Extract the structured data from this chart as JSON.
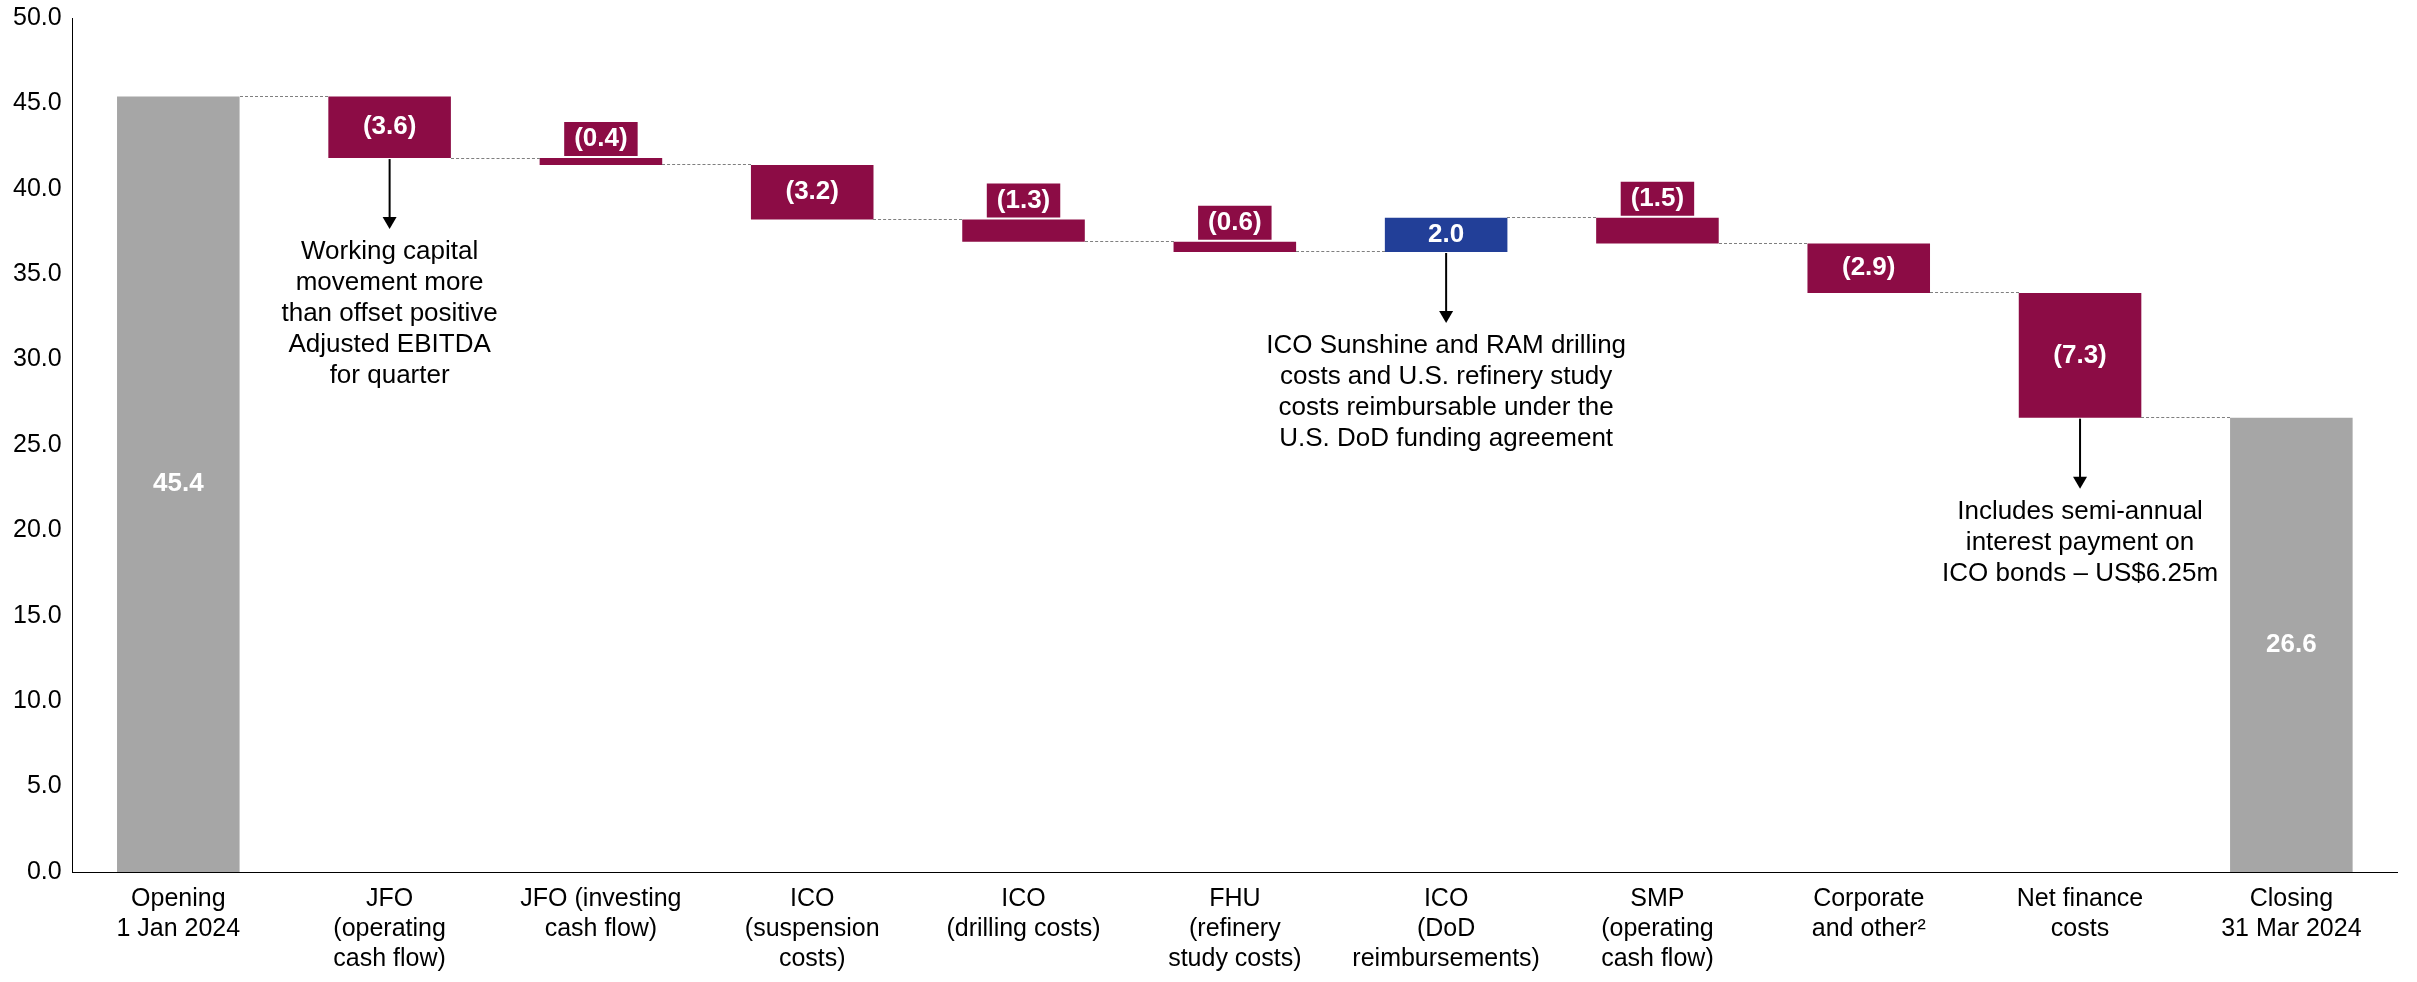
{
  "chart_data": {
    "type": "bar",
    "categories": [
      "Opening\n1 Jan 2024",
      "JFO\n(operating\ncash flow)",
      "JFO (investing\ncash flow)",
      "ICO\n(suspension\ncosts)",
      "ICO\n(drilling costs)",
      "FHU\n(refinery\nstudy costs)",
      "ICO\n(DoD\nreimbursements)",
      "SMP\n(operating\ncash flow)",
      "Corporate\nand other²",
      "Net finance\ncosts",
      "Closing\n31 Mar 2024"
    ],
    "values": [
      45.4,
      -3.6,
      -0.4,
      -3.2,
      -1.3,
      -0.6,
      2.0,
      -1.5,
      -2.9,
      -7.3,
      26.6
    ],
    "base": [
      0,
      45.4,
      41.8,
      41.4,
      38.2,
      36.9,
      36.3,
      38.3,
      36.8,
      33.9,
      0
    ],
    "colors": [
      "#a6a6a6",
      "#8c0c45",
      "#8c0c45",
      "#8c0c45",
      "#8c0c45",
      "#8c0c45",
      "#223f98",
      "#8c0c45",
      "#8c0c45",
      "#8c0c45",
      "#a6a6a6"
    ],
    "value_labels": [
      "45.4",
      "(3.6)",
      "(0.4)",
      "(3.2)",
      "(1.3)",
      "(0.6)",
      "2.0",
      "(1.5)",
      "(2.9)",
      "(7.3)",
      "26.6"
    ],
    "ylim": [
      0,
      50
    ],
    "yticks": [
      {
        "value": 0,
        "label": "0.0"
      },
      {
        "value": 5,
        "label": "5.0"
      },
      {
        "value": 10,
        "label": "10.0"
      },
      {
        "value": 15,
        "label": "15.0"
      },
      {
        "value": 20,
        "label": "20.0"
      },
      {
        "value": 25,
        "label": "25.0"
      },
      {
        "value": 30,
        "label": "30.0"
      },
      {
        "value": 35,
        "label": "35.0"
      },
      {
        "value": 40,
        "label": "40.0"
      },
      {
        "value": 45,
        "label": "45.0"
      },
      {
        "value": 50,
        "label": "50.0"
      }
    ],
    "grid": false,
    "legend": false,
    "annotations": [
      {
        "text": "Working capital\nmovement more\nthan offset positive\nAdjusted EBITDA\nfor quarter",
        "x": "JFO\n(operating\ncash flow)",
        "y": 41.8
      },
      {
        "text": "ICO Sunshine and RAM drilling\ncosts and U.S. refinery study\ncosts reimbursable under the\nU.S. DoD funding agreement",
        "x": "ICO\n(DoD\nreimbursements)",
        "y": 36.3
      },
      {
        "text": "Includes semi-annual\ninterest payment on\nICO bonds – US$6.25m",
        "x": "Net finance\ncosts",
        "y": 26.6
      }
    ]
  }
}
